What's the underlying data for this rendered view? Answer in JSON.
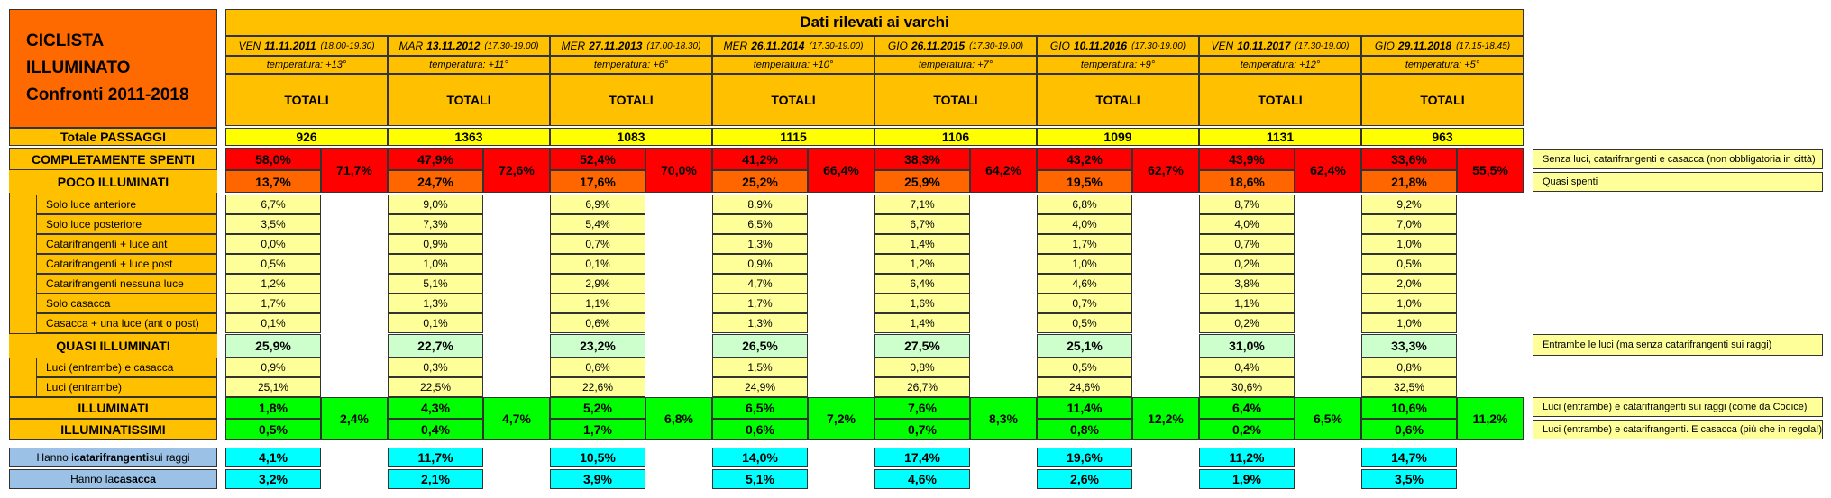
{
  "title": {
    "line1": "CICLISTA",
    "line2": "ILLUMINATO",
    "line3": "Confronti 2011-2018"
  },
  "header_title": "Dati rilevati ai varchi",
  "colors": {
    "orange_title": "#ff6a00",
    "header": "#ffc000",
    "totals_row": "#ffff00",
    "red": "#ff0000",
    "orange_cell": "#ff6600",
    "light": "#ffff99",
    "pale_green": "#ccffcc",
    "green": "#00ff00",
    "cyan": "#00ffff",
    "blue_label": "#9bc2e6"
  },
  "sessions": [
    {
      "day": "VEN",
      "date": "11.11.2011",
      "time": "(18.00-19.30)",
      "temp": "temperatura: +13°",
      "totali": "TOTALI",
      "total": "926",
      "spenti": "58,0%",
      "poco": "13,7%",
      "combo1": "71,7%",
      "details": [
        "6,7%",
        "3,5%",
        "0,0%",
        "0,5%",
        "1,2%",
        "1,7%",
        "0,1%"
      ],
      "quasi": "25,9%",
      "quasi_details": [
        "0,9%",
        "25,1%"
      ],
      "illum": "1,8%",
      "illumissimi": "0,5%",
      "combo2": "2,4%",
      "cat": "4,1%",
      "cas": "3,2%"
    },
    {
      "day": "MAR",
      "date": "13.11.2012",
      "time": "(17.30-19.00)",
      "temp": "temperatura: +11°",
      "totali": "TOTALI",
      "total": "1363",
      "spenti": "47,9%",
      "poco": "24,7%",
      "combo1": "72,6%",
      "details": [
        "9,0%",
        "7,3%",
        "0,9%",
        "1,0%",
        "5,1%",
        "1,3%",
        "0,1%"
      ],
      "quasi": "22,7%",
      "quasi_details": [
        "0,3%",
        "22,5%"
      ],
      "illum": "4,3%",
      "illumissimi": "0,4%",
      "combo2": "4,7%",
      "cat": "11,7%",
      "cas": "2,1%"
    },
    {
      "day": "MER",
      "date": "27.11.2013",
      "time": "(17.00-18.30)",
      "temp": "temperatura: +6°",
      "totali": "TOTALI",
      "total": "1083",
      "spenti": "52,4%",
      "poco": "17,6%",
      "combo1": "70,0%",
      "details": [
        "6,9%",
        "5,4%",
        "0,7%",
        "0,1%",
        "2,9%",
        "1,1%",
        "0,6%"
      ],
      "quasi": "23,2%",
      "quasi_details": [
        "0,6%",
        "22,6%"
      ],
      "illum": "5,2%",
      "illumissimi": "1,7%",
      "combo2": "6,8%",
      "cat": "10,5%",
      "cas": "3,9%"
    },
    {
      "day": "MER",
      "date": "26.11.2014",
      "time": "(17.30-19.00)",
      "temp": "temperatura: +10°",
      "totali": "TOTALI",
      "total": "1115",
      "spenti": "41,2%",
      "poco": "25,2%",
      "combo1": "66,4%",
      "details": [
        "8,9%",
        "6,5%",
        "1,3%",
        "0,9%",
        "4,7%",
        "1,7%",
        "1,3%"
      ],
      "quasi": "26,5%",
      "quasi_details": [
        "1,5%",
        "24,9%"
      ],
      "illum": "6,5%",
      "illumissimi": "0,6%",
      "combo2": "7,2%",
      "cat": "14,0%",
      "cas": "5,1%"
    },
    {
      "day": "GIO",
      "date": "26.11.2015",
      "time": "(17.30-19.00)",
      "temp": "temperatura: +7°",
      "totali": "TOTALI",
      "total": "1106",
      "spenti": "38,3%",
      "poco": "25,9%",
      "combo1": "64,2%",
      "details": [
        "7,1%",
        "6,7%",
        "1,4%",
        "1,2%",
        "6,4%",
        "1,6%",
        "1,4%"
      ],
      "quasi": "27,5%",
      "quasi_details": [
        "0,8%",
        "26,7%"
      ],
      "illum": "7,6%",
      "illumissimi": "0,7%",
      "combo2": "8,3%",
      "cat": "17,4%",
      "cas": "4,6%"
    },
    {
      "day": "GIO",
      "date": "10.11.2016",
      "time": "(17.30-19.00)",
      "temp": "temperatura: +9°",
      "totali": "TOTALI",
      "total": "1099",
      "spenti": "43,2%",
      "poco": "19,5%",
      "combo1": "62,7%",
      "details": [
        "6,8%",
        "4,0%",
        "1,7%",
        "1,0%",
        "4,6%",
        "0,7%",
        "0,5%"
      ],
      "quasi": "25,1%",
      "quasi_details": [
        "0,5%",
        "24,6%"
      ],
      "illum": "11,4%",
      "illumissimi": "0,8%",
      "combo2": "12,2%",
      "cat": "19,6%",
      "cas": "2,6%"
    },
    {
      "day": "VEN",
      "date": "10.11.2017",
      "time": "(17.30-19.00)",
      "temp": "temperatura: +12°",
      "totali": "TOTALI",
      "total": "1131",
      "spenti": "43,9%",
      "poco": "18,6%",
      "combo1": "62,4%",
      "details": [
        "8,7%",
        "4,0%",
        "0,7%",
        "0,2%",
        "3,8%",
        "1,1%",
        "0,2%"
      ],
      "quasi": "31,0%",
      "quasi_details": [
        "0,4%",
        "30,6%"
      ],
      "illum": "6,4%",
      "illumissimi": "0,2%",
      "combo2": "6,5%",
      "cat": "11,2%",
      "cas": "1,9%"
    },
    {
      "day": "GIO",
      "date": "29.11.2018",
      "time": "(17.15-18.45)",
      "temp": "temperatura: +5°",
      "totali": "TOTALI",
      "total": "963",
      "spenti": "33,6%",
      "poco": "21,8%",
      "combo1": "55,5%",
      "details": [
        "9,2%",
        "7,0%",
        "1,0%",
        "0,5%",
        "2,0%",
        "1,0%",
        "1,0%"
      ],
      "quasi": "33,3%",
      "quasi_details": [
        "0,8%",
        "32,5%"
      ],
      "illum": "10,6%",
      "illumissimi": "0,6%",
      "combo2": "11,2%",
      "cat": "14,7%",
      "cas": "3,5%"
    }
  ],
  "labels": {
    "totale": "Totale PASSAGGI",
    "spenti": "COMPLETAMENTE SPENTI",
    "poco": "POCO ILLUMINATI",
    "details": [
      "Solo luce anteriore",
      "Solo luce posteriore",
      "Catarifrangenti + luce ant",
      "Catarifrangenti + luce post",
      "Catarifrangenti nessuna luce",
      "Solo casacca",
      "Casacca + una luce (ant o post)"
    ],
    "quasi": "QUASI ILLUMINATI",
    "quasi_details": [
      "Luci (entrambe) e casacca",
      "Luci (entrambe)"
    ],
    "illum": "ILLUMINATI",
    "illumissimi": "ILLUMINATISSIMI",
    "cat_a": "Hanno i ",
    "cat_b": "catarifrangenti",
    "cat_c": " sui raggi",
    "cas_a": "Hanno la ",
    "cas_b": "casacca"
  },
  "notes": {
    "spenti": "Senza luci, catarifrangenti e casacca (non obbligatoria in città)",
    "poco": "Quasi spenti",
    "quasi": "Entrambe le luci (ma senza catarifrangenti sui raggi)",
    "illum": "Luci (entrambe) e catarifrangenti sui raggi (come da Codice)",
    "illumissimi": "Luci (entrambe) e catarifrangenti. E casacca (più che in regola!)"
  }
}
